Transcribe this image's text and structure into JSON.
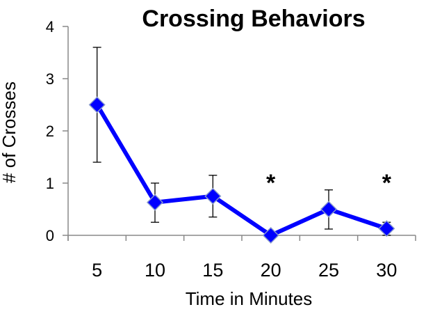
{
  "chart_data": {
    "type": "line",
    "title": "Crossing Behaviors",
    "xlabel": "Time in Minutes",
    "ylabel": "# of Crosses",
    "categories": [
      "5",
      "10",
      "15",
      "20",
      "25",
      "30"
    ],
    "y_ticks": [
      "0",
      "1",
      "2",
      "3",
      "4"
    ],
    "ylim": [
      0,
      4
    ],
    "series": [
      {
        "values": [
          2.5,
          0.63,
          0.75,
          0.0,
          0.5,
          0.13
        ],
        "error_upper": [
          3.6,
          1.0,
          1.15,
          0.0,
          0.87,
          0.25
        ],
        "error_lower": [
          1.4,
          0.25,
          0.35,
          0.0,
          0.12,
          0.0
        ],
        "color": "#0000ff"
      }
    ],
    "annotations": [
      {
        "category": "20",
        "text": "*"
      },
      {
        "category": "30",
        "text": "*"
      }
    ],
    "grid": false,
    "legend": "none"
  }
}
